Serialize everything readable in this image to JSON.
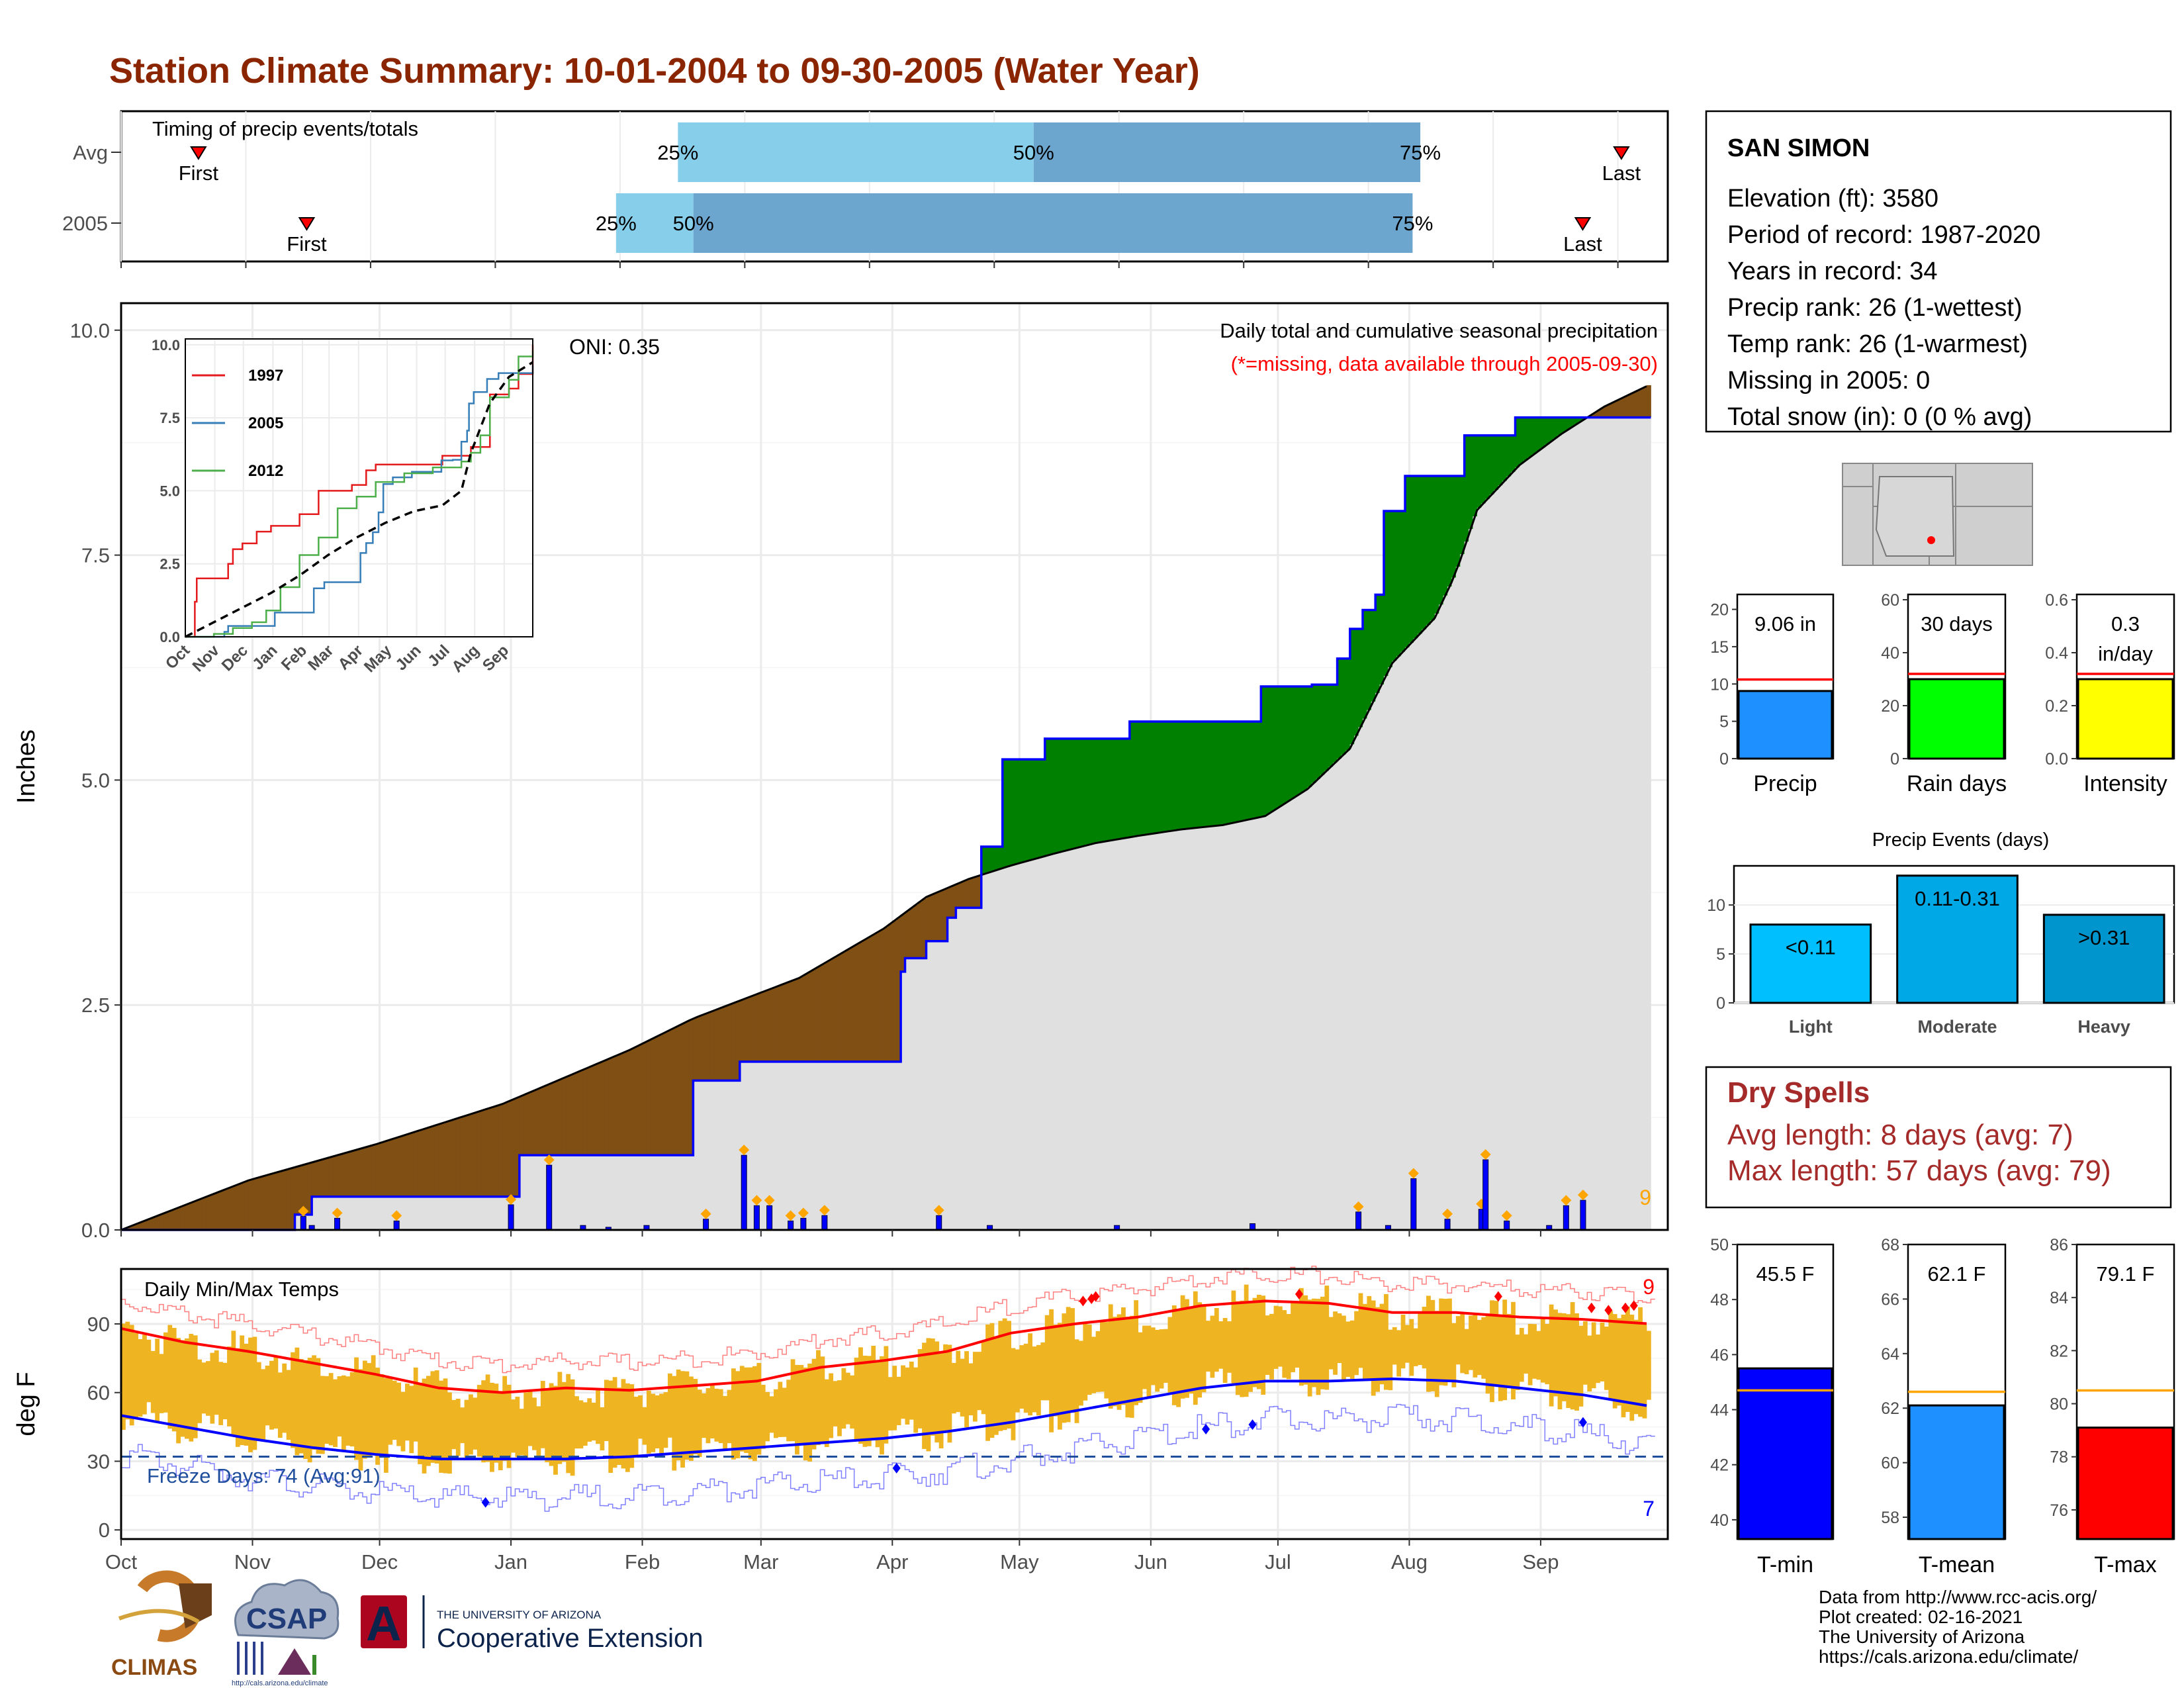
{
  "title": "Station Climate Summary: 10-01-2004 to 09-30-2005 (Water Year)",
  "timing": {
    "label": "Timing of precip events/totals",
    "rows": [
      {
        "name": "Avg",
        "q25": 0.36,
        "q50": 0.59,
        "q75": 0.84,
        "first": 0.05,
        "last": 0.97,
        "q25_label": "25%",
        "q50_label": "50%",
        "q75_label": "75%",
        "first_label": "First",
        "last_label": "Last"
      },
      {
        "name": "2005",
        "q25": 0.32,
        "q50": 0.37,
        "q75": 0.835,
        "first": 0.12,
        "last": 0.945,
        "q25_label": "25%",
        "q50_label": "50%",
        "q75_label": "75%",
        "first_label": "First",
        "last_label": "Last"
      }
    ]
  },
  "precip_panel": {
    "ylabel": "Inches",
    "yticks": [
      "0.0",
      "2.5",
      "5.0",
      "7.5",
      "10.0"
    ],
    "caption1": "Daily total and cumulative seasonal precipitation",
    "caption2": "(*=missing, data available through 2005-09-30)",
    "oni": "ONI: 0.35",
    "max_label": "9",
    "colors": {
      "above": "#008000",
      "below": "#7f4f14",
      "avg_fill": "#e0e0e0",
      "line": "#0000ff",
      "marker": "#ffa500"
    }
  },
  "chart_data": [
    {
      "type": "area",
      "title": "Daily total and cumulative seasonal precipitation",
      "ylabel": "Inches",
      "ylim": [
        0,
        10.3
      ],
      "x_units": "day of water year (Oct 1 = 0)",
      "series": [
        {
          "name": "2005",
          "type": "step",
          "x": [
            0,
            41,
            45,
            60,
            94,
            135,
            146,
            176,
            184,
            185,
            190,
            195,
            197,
            203,
            208,
            218,
            238,
            269,
            281,
            287,
            290,
            293,
            296,
            298,
            303,
            317,
            329,
            345,
            361
          ],
          "y": [
            0.0,
            0.17,
            0.37,
            0.37,
            0.83,
            1.66,
            1.87,
            1.87,
            2.87,
            3.02,
            3.21,
            3.47,
            3.58,
            4.26,
            5.23,
            5.46,
            5.65,
            6.04,
            6.06,
            6.35,
            6.68,
            6.89,
            7.06,
            7.99,
            8.38,
            8.83,
            9.03,
            9.03,
            9.03
          ]
        },
        {
          "name": "Avg",
          "type": "line",
          "x": [
            0,
            30,
            60,
            90,
            120,
            135,
            160,
            180,
            190,
            200,
            210,
            220,
            230,
            240,
            250,
            260,
            270,
            280,
            290,
            300,
            310,
            315,
            320,
            330,
            340,
            350,
            361
          ],
          "y": [
            0.0,
            0.55,
            0.95,
            1.4,
            2.0,
            2.35,
            2.8,
            3.35,
            3.7,
            3.9,
            4.05,
            4.18,
            4.3,
            4.38,
            4.45,
            4.5,
            4.6,
            4.9,
            5.35,
            6.3,
            6.8,
            7.3,
            8.0,
            8.5,
            8.85,
            9.15,
            9.4
          ]
        }
      ],
      "daily_precip": {
        "x": [
          43,
          45,
          51,
          65,
          92,
          101,
          109,
          115,
          124,
          138,
          147,
          150,
          153,
          158,
          161,
          166,
          193,
          205,
          235,
          267,
          292,
          299,
          305,
          313,
          321,
          322,
          327,
          337,
          341,
          345
        ],
        "y": [
          0.15,
          0.05,
          0.13,
          0.1,
          0.28,
          0.72,
          0.05,
          0.03,
          0.05,
          0.12,
          0.83,
          0.27,
          0.27,
          0.1,
          0.13,
          0.16,
          0.16,
          0.05,
          0.05,
          0.07,
          0.2,
          0.05,
          0.57,
          0.12,
          0.23,
          0.78,
          0.1,
          0.05,
          0.27,
          0.33
        ]
      }
    },
    {
      "type": "line",
      "title": "",
      "x_categories": [
        "Oct",
        "Nov",
        "Dec",
        "Jan",
        "Feb",
        "Mar",
        "Apr",
        "May",
        "Jun",
        "Jul",
        "Aug",
        "Sep"
      ],
      "ylim": [
        0,
        10
      ],
      "yticks": [
        "0.0",
        "2.5",
        "5.0",
        "7.5",
        "10.0"
      ],
      "series": [
        {
          "name": "1997",
          "color": "#e41a1c",
          "x": [
            0,
            10,
            12,
            30,
            45,
            50,
            60,
            75,
            90,
            120,
            140,
            150,
            175,
            190,
            200,
            230,
            270,
            300,
            320,
            340,
            350,
            361,
            365
          ],
          "y": [
            0,
            1.2,
            2.0,
            2.0,
            2.5,
            3.0,
            3.2,
            3.6,
            3.8,
            4.2,
            5.0,
            5.0,
            5.2,
            5.7,
            5.9,
            5.9,
            6.2,
            6.5,
            8.3,
            8.5,
            9.0,
            9.0,
            10.0
          ]
        },
        {
          "name": "2005",
          "color": "#377eb8",
          "x": [
            0,
            41,
            45,
            60,
            94,
            135,
            146,
            176,
            184,
            190,
            197,
            203,
            208,
            218,
            238,
            269,
            281,
            290,
            296,
            298,
            303,
            317,
            329,
            361,
            365
          ],
          "y": [
            0,
            0.17,
            0.37,
            0.37,
            0.83,
            1.66,
            1.87,
            1.87,
            2.87,
            3.21,
            3.58,
            4.26,
            5.23,
            5.46,
            5.65,
            6.04,
            6.06,
            6.68,
            7.06,
            7.99,
            8.38,
            8.83,
            9.03,
            9.03,
            9.3
          ]
        },
        {
          "name": "2012",
          "color": "#4daf4a",
          "x": [
            0,
            30,
            50,
            70,
            85,
            100,
            120,
            140,
            160,
            180,
            200,
            230,
            260,
            290,
            300,
            310,
            320,
            340,
            350,
            365
          ],
          "y": [
            0,
            0.1,
            0.3,
            0.5,
            0.9,
            1.7,
            2.8,
            3.4,
            4.4,
            4.8,
            5.3,
            5.6,
            5.8,
            6.0,
            6.3,
            6.9,
            8.2,
            8.8,
            9.6,
            9.8
          ]
        },
        {
          "name": "Avg",
          "color": "#000000",
          "dashed": true,
          "x": [
            0,
            30,
            60,
            90,
            120,
            150,
            180,
            210,
            240,
            270,
            290,
            300,
            320,
            340,
            365
          ],
          "y": [
            0,
            0.5,
            1.0,
            1.5,
            2.1,
            2.8,
            3.4,
            3.9,
            4.3,
            4.5,
            5.0,
            6.3,
            8.0,
            8.9,
            9.4
          ]
        }
      ]
    },
    {
      "type": "line",
      "title": "Daily Min/Max Temps",
      "ylabel": "deg F",
      "ylim": [
        -4,
        114
      ],
      "yticks": [
        "0",
        "30",
        "60",
        "90"
      ],
      "freeze_line": 32,
      "series": [
        {
          "name": "Avg Max",
          "color": "#ff0000",
          "x": [
            0,
            15,
            30,
            45,
            60,
            75,
            90,
            105,
            120,
            135,
            150,
            165,
            180,
            195,
            210,
            225,
            240,
            255,
            270,
            285,
            300,
            315,
            330,
            345,
            361
          ],
          "y": [
            88,
            82,
            78,
            73,
            68,
            62,
            60,
            62,
            61,
            63,
            65,
            71,
            74,
            78,
            86,
            90,
            93,
            98,
            100,
            99,
            95,
            95,
            93,
            92,
            90
          ]
        },
        {
          "name": "Avg Min",
          "color": "#0000ff",
          "x": [
            0,
            15,
            30,
            45,
            60,
            75,
            90,
            105,
            120,
            135,
            150,
            165,
            180,
            195,
            210,
            225,
            240,
            255,
            270,
            285,
            300,
            315,
            330,
            345,
            361
          ],
          "y": [
            50,
            45,
            40,
            36,
            33,
            31,
            31,
            31,
            32,
            34,
            36,
            38,
            40,
            43,
            47,
            52,
            57,
            62,
            65,
            65,
            66,
            65,
            62,
            59,
            54
          ]
        }
      ]
    },
    {
      "type": "bar",
      "title": "",
      "categories": [
        "Precip"
      ],
      "values": [
        9.06
      ],
      "avg": 10.6,
      "ylim": [
        0,
        22
      ],
      "yticks": [
        "0",
        "5",
        "10",
        "15",
        "20"
      ],
      "label": "9.06 in",
      "color": "#1e90ff"
    },
    {
      "type": "bar",
      "title": "",
      "categories": [
        "Rain days"
      ],
      "values": [
        30
      ],
      "avg": 32,
      "ylim": [
        0,
        62
      ],
      "yticks": [
        "0",
        "20",
        "40",
        "60"
      ],
      "label": "30 days",
      "color": "#00ff00"
    },
    {
      "type": "bar",
      "title": "",
      "categories": [
        "Intensity"
      ],
      "values": [
        0.3
      ],
      "avg": 0.32,
      "ylim": [
        0,
        0.62
      ],
      "yticks": [
        "0.0",
        "0.2",
        "0.4",
        "0.6"
      ],
      "label": "0.3 in/day",
      "color": "#ffff00"
    },
    {
      "type": "bar",
      "title": "Precip Events (days)",
      "categories": [
        "Light",
        "Moderate",
        "Heavy"
      ],
      "values": [
        8,
        13,
        9
      ],
      "labels": [
        "<0.11",
        "0.11-0.31",
        ">0.31"
      ],
      "ylim": [
        0,
        14
      ],
      "yticks": [
        "0",
        "5",
        "10"
      ],
      "colors": [
        "#00bfff",
        "#00a8e6",
        "#0095cc"
      ]
    },
    {
      "type": "bar",
      "title": "",
      "categories": [
        "T-min"
      ],
      "values": [
        45.5
      ],
      "avg": 44.7,
      "ylim": [
        39.3,
        50
      ],
      "yticks": [
        "40",
        "42",
        "44",
        "46",
        "48",
        "50"
      ],
      "label": "45.5 F",
      "color": "#0000ff"
    },
    {
      "type": "bar",
      "title": "",
      "categories": [
        "T-mean"
      ],
      "values": [
        62.1
      ],
      "avg": 62.6,
      "ylim": [
        57.2,
        68
      ],
      "yticks": [
        "58",
        "60",
        "62",
        "64",
        "66",
        "68"
      ],
      "label": "62.1 F",
      "color": "#1e90ff"
    },
    {
      "type": "bar",
      "title": "",
      "categories": [
        "T-max"
      ],
      "values": [
        79.1
      ],
      "avg": 80.5,
      "ylim": [
        74.9,
        86
      ],
      "yticks": [
        "76",
        "78",
        "80",
        "82",
        "84",
        "86"
      ],
      "label": "79.1 F",
      "color": "#ff0000"
    }
  ],
  "temp_panel": {
    "title": "Daily Min/Max Temps",
    "freeze_text": "Freeze Days: 74 (Avg:91)",
    "max_count": "9",
    "min_count": "7",
    "ylabel": "deg F"
  },
  "months": [
    "Oct",
    "Nov",
    "Dec",
    "Jan",
    "Feb",
    "Mar",
    "Apr",
    "May",
    "Jun",
    "Jul",
    "Aug",
    "Sep"
  ],
  "station": {
    "name": "SAN SIMON",
    "lines": [
      "Elevation (ft): 3580",
      "Period of record: 1987-2020",
      "Years in record: 34",
      "Precip rank: 26 (1-wettest)",
      "Temp rank: 26 (1-warmest)",
      "Missing in 2005: 0",
      "Total snow (in): 0 (0 % avg)"
    ]
  },
  "dry_spells": {
    "title": "Dry Spells",
    "avg": "Avg length: 8 days (avg: 7)",
    "max": "Max length: 57 days (avg: 79)"
  },
  "footer": [
    "Data from http://www.rcc-acis.org/",
    "Plot created: 02-16-2021",
    "The University of Arizona",
    "https://cals.arizona.edu/climate/"
  ],
  "logos": {
    "climas": "CLIMAS",
    "csap": "CSAP",
    "csap_url": "http://cals.arizona.edu/climate",
    "ua_small": "THE UNIVERSITY OF ARIZONA",
    "ua_big": "Cooperative Extension",
    "ua_letter": "A"
  }
}
